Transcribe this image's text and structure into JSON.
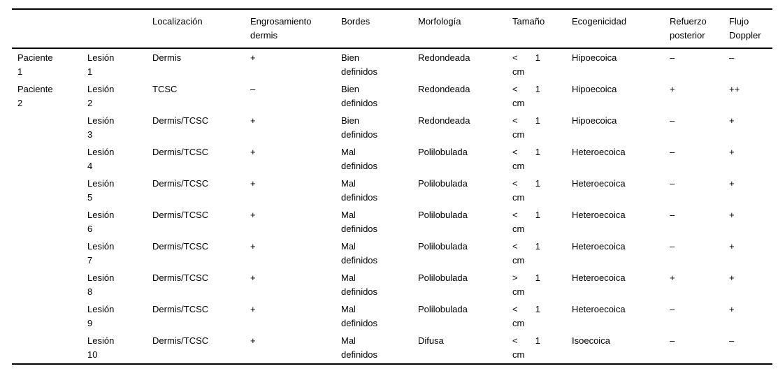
{
  "table": {
    "columns": [
      "",
      "",
      "Localización",
      "Engrosamiento dermis",
      "Bordes",
      "Morfología",
      "Tamaño",
      "Ecogenicidad",
      "Refuerzo posterior",
      "Flujo Doppler"
    ],
    "rows": [
      {
        "paciente": "Paciente 1",
        "lesion": "Lesión 1",
        "localizacion": "Dermis",
        "engrosamiento": "+",
        "bordes": "Bien definidos",
        "morfologia": "Redondeada",
        "tamano": {
          "sign": "<",
          "num": "1",
          "unit": "cm"
        },
        "ecogenicidad": "Hipoecoica",
        "refuerzo": "–",
        "doppler": "–"
      },
      {
        "paciente": "Paciente 2",
        "lesion": "Lesión 2",
        "localizacion": "TCSC",
        "engrosamiento": "–",
        "bordes": "Bien definidos",
        "morfologia": "Redondeada",
        "tamano": {
          "sign": "<",
          "num": "1",
          "unit": "cm"
        },
        "ecogenicidad": "Hipoecoica",
        "refuerzo": "+",
        "doppler": "++"
      },
      {
        "paciente": "",
        "lesion": "Lesión 3",
        "localizacion": "Dermis/TCSC",
        "engrosamiento": "+",
        "bordes": "Bien definidos",
        "morfologia": "Redondeada",
        "tamano": {
          "sign": "<",
          "num": "1",
          "unit": "cm"
        },
        "ecogenicidad": "Hipoecoica",
        "refuerzo": "–",
        "doppler": "+"
      },
      {
        "paciente": "",
        "lesion": "Lesión 4",
        "localizacion": "Dermis/TCSC",
        "engrosamiento": "+",
        "bordes": "Mal definidos",
        "morfologia": "Polilobulada",
        "tamano": {
          "sign": "<",
          "num": "1",
          "unit": "cm"
        },
        "ecogenicidad": "Heteroecoica",
        "refuerzo": "–",
        "doppler": "+"
      },
      {
        "paciente": "",
        "lesion": "Lesión 5",
        "localizacion": "Dermis/TCSC",
        "engrosamiento": "+",
        "bordes": "Mal definidos",
        "morfologia": "Polilobulada",
        "tamano": {
          "sign": "<",
          "num": "1",
          "unit": "cm"
        },
        "ecogenicidad": "Heteroecoica",
        "refuerzo": "–",
        "doppler": "+"
      },
      {
        "paciente": "",
        "lesion": "Lesión 6",
        "localizacion": "Dermis/TCSC",
        "engrosamiento": "+",
        "bordes": "Mal definidos",
        "morfologia": "Polilobulada",
        "tamano": {
          "sign": "<",
          "num": "1",
          "unit": "cm"
        },
        "ecogenicidad": "Heteroecoica",
        "refuerzo": "–",
        "doppler": "+"
      },
      {
        "paciente": "",
        "lesion": "Lesión 7",
        "localizacion": "Dermis/TCSC",
        "engrosamiento": "+",
        "bordes": "Mal definidos",
        "morfologia": "Polilobulada",
        "tamano": {
          "sign": "<",
          "num": "1",
          "unit": "cm"
        },
        "ecogenicidad": "Heteroecoica",
        "refuerzo": "–",
        "doppler": "+"
      },
      {
        "paciente": "",
        "lesion": "Lesión 8",
        "localizacion": "Dermis/TCSC",
        "engrosamiento": "+",
        "bordes": "Mal definidos",
        "morfologia": "Polilobulada",
        "tamano": {
          "sign": ">",
          "num": "1",
          "unit": "cm"
        },
        "ecogenicidad": "Heteroecoica",
        "refuerzo": "+",
        "doppler": "+"
      },
      {
        "paciente": "",
        "lesion": "Lesión 9",
        "localizacion": "Dermis/TCSC",
        "engrosamiento": "+",
        "bordes": "Mal definidos",
        "morfologia": "Polilobulada",
        "tamano": {
          "sign": "<",
          "num": "1",
          "unit": "cm"
        },
        "ecogenicidad": "Heteroecoica",
        "refuerzo": "–",
        "doppler": "+"
      },
      {
        "paciente": "",
        "lesion": "Lesión 10",
        "localizacion": "Dermis/TCSC",
        "engrosamiento": "+",
        "bordes": "Mal definidos",
        "morfologia": "Difusa",
        "tamano": {
          "sign": "<",
          "num": "1",
          "unit": "cm"
        },
        "ecogenicidad": "Isoecoica",
        "refuerzo": "–",
        "doppler": "–"
      }
    ]
  }
}
